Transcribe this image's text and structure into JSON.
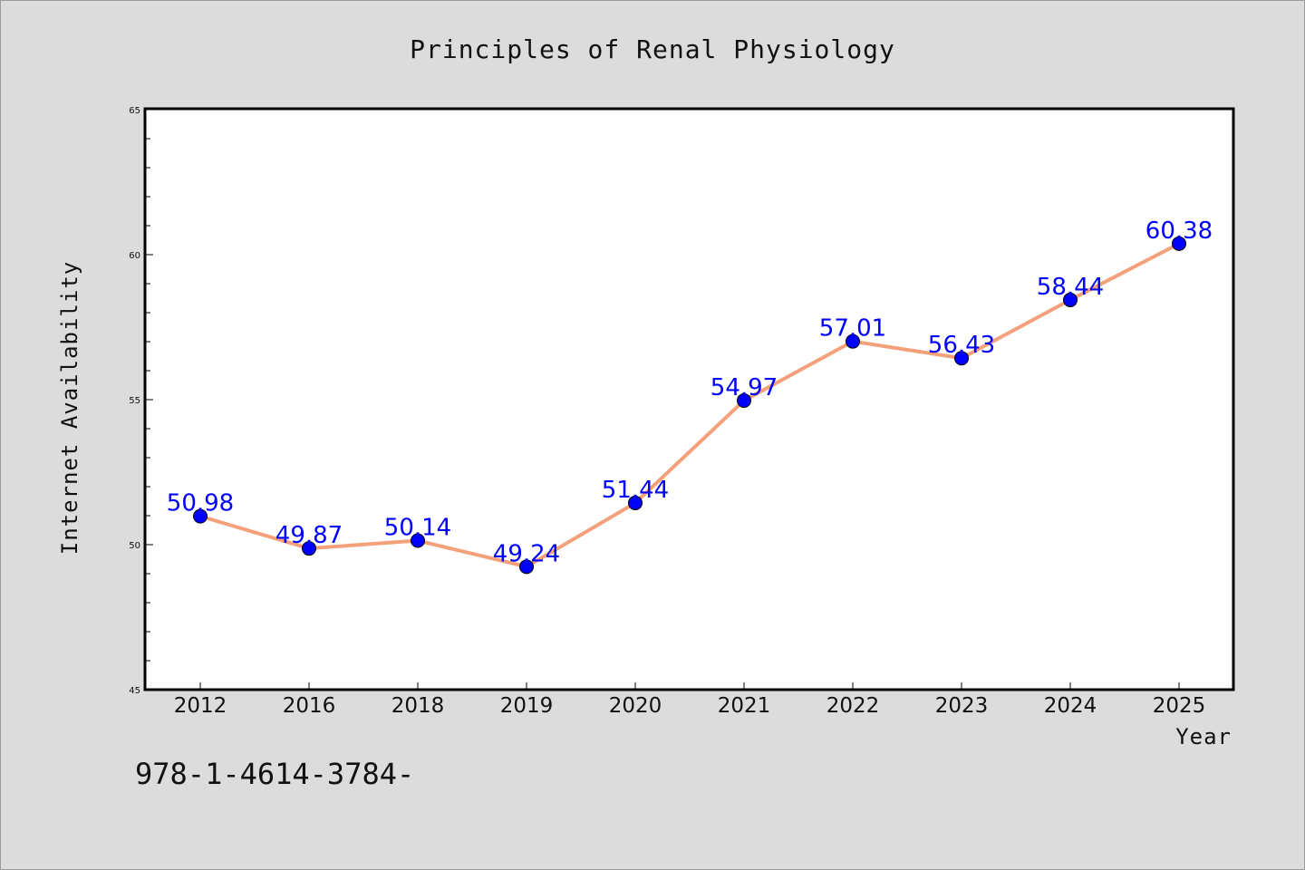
{
  "chart_data": {
    "type": "line",
    "title": "Principles of Renal Physiology",
    "xlabel": "Year",
    "ylabel": "Internet Availability",
    "categories": [
      "2012",
      "2016",
      "2018",
      "2019",
      "2020",
      "2021",
      "2022",
      "2023",
      "2024",
      "2025"
    ],
    "series": [
      {
        "values": [
          50.98,
          49.87,
          50.14,
          49.24,
          51.44,
          54.97,
          57.01,
          56.43,
          58.44,
          60.38
        ],
        "labels": [
          "50.98",
          "49.87",
          "50.14",
          "49.24",
          "51.44",
          "54.97",
          "57.01",
          "56.43",
          "58.44",
          "60.38"
        ],
        "line_color": "#f4a07a",
        "marker_color": "#0000ff"
      }
    ],
    "ylim": [
      45,
      65
    ],
    "yticks": [
      "45",
      "50",
      "55",
      "60",
      "65"
    ],
    "grid": false,
    "legend": "none"
  },
  "footer": {
    "text": "978-1-4614-3784-"
  }
}
